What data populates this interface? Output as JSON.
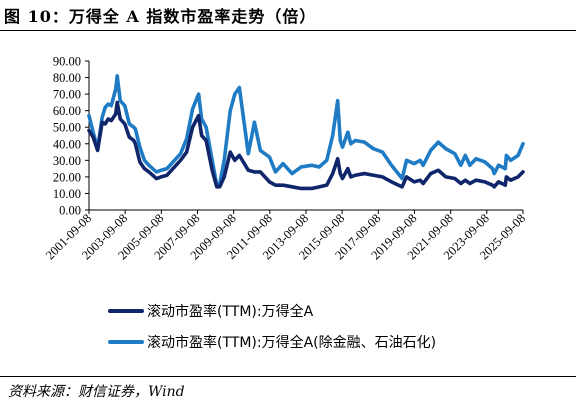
{
  "header": {
    "title": "图 10：万得全 A 指数市盈率走势（倍）"
  },
  "footer": {
    "source": "资料来源：财信证券，Wind"
  },
  "chart_data": {
    "type": "line",
    "title": "",
    "xlabel": "",
    "ylabel": "",
    "ylim": [
      0,
      90
    ],
    "yticks": [
      "0.00",
      "10.00",
      "20.00",
      "30.00",
      "40.00",
      "50.00",
      "60.00",
      "70.00",
      "80.00",
      "90.00"
    ],
    "xticks": [
      "2001-09-08",
      "2003-09-08",
      "2005-09-08",
      "2007-09-08",
      "2009-09-08",
      "2011-09-08",
      "2013-09-08",
      "2015-09-08",
      "2017-09-08",
      "2019-09-08",
      "2021-09-08",
      "2023-09-08",
      "2025-09-08"
    ],
    "grid": false,
    "legend_position": "bottom",
    "series": [
      {
        "name": "滚动市盈率(TTM):万得全A",
        "color": "#10266a",
        "points": [
          [
            "2001-09-08",
            48
          ],
          [
            "2001-12-01",
            44
          ],
          [
            "2002-03-01",
            36
          ],
          [
            "2002-06-01",
            53
          ],
          [
            "2002-08-01",
            52
          ],
          [
            "2002-10-01",
            55
          ],
          [
            "2002-12-01",
            54
          ],
          [
            "2003-03-01",
            58
          ],
          [
            "2003-04-01",
            65
          ],
          [
            "2003-06-01",
            55
          ],
          [
            "2003-09-01",
            52
          ],
          [
            "2003-12-01",
            44
          ],
          [
            "2004-03-01",
            42
          ],
          [
            "2004-04-01",
            40
          ],
          [
            "2004-07-01",
            29
          ],
          [
            "2004-10-01",
            25
          ],
          [
            "2005-01-01",
            23
          ],
          [
            "2005-06-01",
            19
          ],
          [
            "2005-09-01",
            20
          ],
          [
            "2006-01-01",
            21
          ],
          [
            "2006-06-01",
            26
          ],
          [
            "2006-10-01",
            30
          ],
          [
            "2007-02-01",
            35
          ],
          [
            "2007-06-01",
            50
          ],
          [
            "2007-10-01",
            57
          ],
          [
            "2007-12-01",
            45
          ],
          [
            "2008-03-01",
            42
          ],
          [
            "2008-07-01",
            24
          ],
          [
            "2008-10-01",
            14
          ],
          [
            "2008-12-01",
            14
          ],
          [
            "2009-03-01",
            20
          ],
          [
            "2009-07-01",
            35
          ],
          [
            "2009-10-01",
            30
          ],
          [
            "2010-01-01",
            33
          ],
          [
            "2010-07-01",
            24
          ],
          [
            "2010-11-01",
            23
          ],
          [
            "2011-03-01",
            23
          ],
          [
            "2011-09-01",
            17
          ],
          [
            "2012-01-01",
            15
          ],
          [
            "2012-06-01",
            15
          ],
          [
            "2012-12-01",
            14
          ],
          [
            "2013-06-01",
            13
          ],
          [
            "2014-01-01",
            13
          ],
          [
            "2014-06-01",
            14
          ],
          [
            "2014-11-01",
            15
          ],
          [
            "2015-03-01",
            22
          ],
          [
            "2015-06-10",
            31
          ],
          [
            "2015-08-01",
            22
          ],
          [
            "2015-09-15",
            19
          ],
          [
            "2016-01-01",
            25
          ],
          [
            "2016-03-01",
            20
          ],
          [
            "2016-06-01",
            21
          ],
          [
            "2016-12-01",
            22
          ],
          [
            "2017-06-01",
            21
          ],
          [
            "2017-12-01",
            20
          ],
          [
            "2018-06-01",
            17
          ],
          [
            "2019-01-01",
            14
          ],
          [
            "2019-04-01",
            20
          ],
          [
            "2019-09-01",
            17
          ],
          [
            "2020-01-01",
            18
          ],
          [
            "2020-03-01",
            16
          ],
          [
            "2020-08-01",
            22
          ],
          [
            "2021-01-01",
            24
          ],
          [
            "2021-06-01",
            20
          ],
          [
            "2021-12-01",
            19
          ],
          [
            "2022-04-01",
            16
          ],
          [
            "2022-07-01",
            18
          ],
          [
            "2022-10-01",
            16
          ],
          [
            "2023-02-01",
            18
          ],
          [
            "2023-08-01",
            17
          ],
          [
            "2024-01-01",
            15
          ],
          [
            "2024-02-05",
            14
          ],
          [
            "2024-05-01",
            17
          ],
          [
            "2024-09-15",
            15
          ],
          [
            "2024-10-08",
            20
          ],
          [
            "2025-01-01",
            18
          ],
          [
            "2025-06-01",
            20
          ],
          [
            "2025-09-08",
            23
          ]
        ]
      },
      {
        "name": "滚动市盈率(TTM):万得全A(除金融、石油石化)",
        "color": "#1f7bc4",
        "points": [
          [
            "2001-09-08",
            57
          ],
          [
            "2001-12-01",
            47
          ],
          [
            "2002-03-01",
            37
          ],
          [
            "2002-06-01",
            56
          ],
          [
            "2002-08-01",
            62
          ],
          [
            "2002-10-01",
            64
          ],
          [
            "2002-12-01",
            63
          ],
          [
            "2003-03-01",
            73
          ],
          [
            "2003-04-01",
            81
          ],
          [
            "2003-06-01",
            66
          ],
          [
            "2003-09-01",
            63
          ],
          [
            "2003-12-01",
            52
          ],
          [
            "2004-03-01",
            50
          ],
          [
            "2004-04-01",
            49
          ],
          [
            "2004-07-01",
            38
          ],
          [
            "2004-10-01",
            30
          ],
          [
            "2005-01-01",
            27
          ],
          [
            "2005-06-01",
            23
          ],
          [
            "2005-09-01",
            24
          ],
          [
            "2006-01-01",
            25
          ],
          [
            "2006-06-01",
            30
          ],
          [
            "2006-10-01",
            34
          ],
          [
            "2007-02-01",
            43
          ],
          [
            "2007-06-01",
            61
          ],
          [
            "2007-10-01",
            70
          ],
          [
            "2007-12-01",
            55
          ],
          [
            "2008-03-01",
            50
          ],
          [
            "2008-07-01",
            30
          ],
          [
            "2008-10-01",
            15
          ],
          [
            "2008-12-01",
            16
          ],
          [
            "2009-03-01",
            30
          ],
          [
            "2009-07-01",
            60
          ],
          [
            "2009-10-01",
            70
          ],
          [
            "2010-01-01",
            74
          ],
          [
            "2010-07-01",
            34
          ],
          [
            "2010-11-01",
            53
          ],
          [
            "2011-03-01",
            36
          ],
          [
            "2011-09-01",
            32
          ],
          [
            "2012-01-01",
            23
          ],
          [
            "2012-06-01",
            28
          ],
          [
            "2012-12-01",
            22
          ],
          [
            "2013-06-01",
            26
          ],
          [
            "2014-01-01",
            27
          ],
          [
            "2014-06-01",
            26
          ],
          [
            "2014-11-01",
            30
          ],
          [
            "2015-03-01",
            45
          ],
          [
            "2015-06-10",
            66
          ],
          [
            "2015-08-01",
            42
          ],
          [
            "2015-09-15",
            38
          ],
          [
            "2016-01-01",
            47
          ],
          [
            "2016-03-01",
            40
          ],
          [
            "2016-06-01",
            42
          ],
          [
            "2016-12-01",
            41
          ],
          [
            "2017-06-01",
            37
          ],
          [
            "2017-12-01",
            35
          ],
          [
            "2018-06-01",
            27
          ],
          [
            "2019-01-01",
            19
          ],
          [
            "2019-04-01",
            30
          ],
          [
            "2019-09-01",
            28
          ],
          [
            "2020-01-01",
            30
          ],
          [
            "2020-03-01",
            27
          ],
          [
            "2020-08-01",
            36
          ],
          [
            "2021-01-01",
            41
          ],
          [
            "2021-06-01",
            37
          ],
          [
            "2021-12-01",
            34
          ],
          [
            "2022-04-01",
            27
          ],
          [
            "2022-07-01",
            33
          ],
          [
            "2022-10-01",
            27
          ],
          [
            "2023-02-01",
            31
          ],
          [
            "2023-08-01",
            29
          ],
          [
            "2024-01-01",
            25
          ],
          [
            "2024-02-05",
            22
          ],
          [
            "2024-05-01",
            27
          ],
          [
            "2024-09-15",
            25
          ],
          [
            "2024-10-08",
            33
          ],
          [
            "2025-01-01",
            30
          ],
          [
            "2025-06-01",
            33
          ],
          [
            "2025-09-08",
            40
          ]
        ]
      }
    ]
  }
}
